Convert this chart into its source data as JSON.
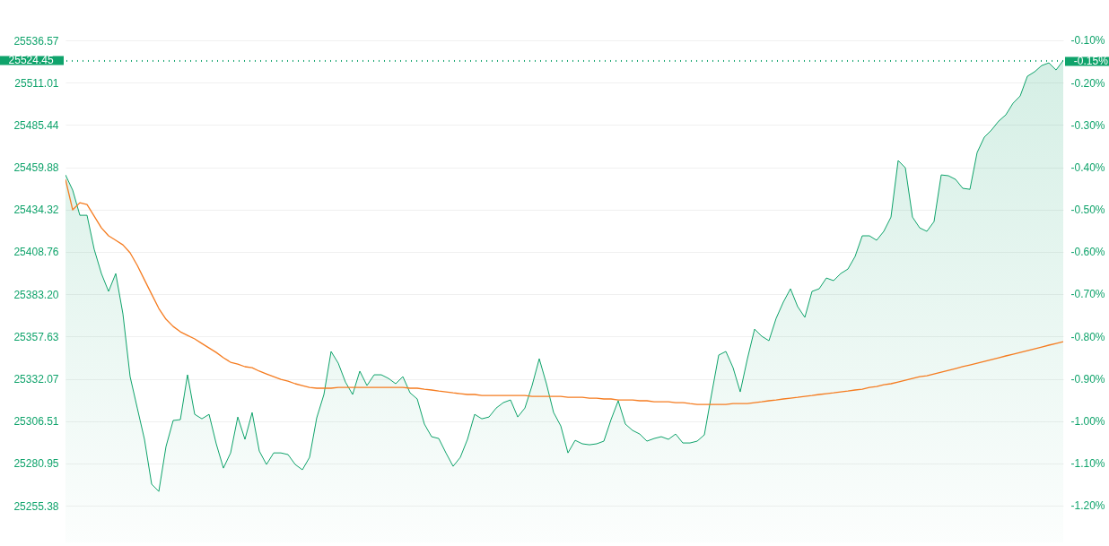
{
  "chart_data": {
    "type": "area",
    "categories": [
      null,
      null,
      null,
      null,
      null,
      null,
      null,
      null,
      null,
      null,
      null,
      null,
      null,
      null,
      null,
      null,
      null,
      null,
      null,
      null,
      null,
      null,
      null,
      null,
      null,
      null,
      null,
      null,
      null,
      null,
      null,
      null,
      null,
      null,
      null,
      null,
      null,
      null,
      null,
      null,
      null,
      null,
      null,
      null,
      null,
      null,
      null,
      null,
      null,
      null,
      null,
      null,
      null,
      null,
      null,
      null,
      null,
      null,
      null,
      null,
      null,
      null,
      null,
      null,
      null,
      null,
      null,
      null,
      null,
      null,
      null,
      null,
      null,
      null,
      null,
      null,
      null,
      null,
      null,
      null,
      null,
      null,
      null,
      null,
      null,
      null,
      null,
      null,
      null,
      null,
      null,
      null,
      null,
      null,
      null,
      null,
      null,
      null,
      null,
      null,
      null,
      null,
      null,
      null,
      null,
      null,
      null,
      null,
      null,
      null,
      null,
      null,
      null,
      null,
      null,
      null,
      null,
      null,
      null,
      null,
      null,
      null,
      null,
      null,
      null,
      null,
      null,
      null,
      null,
      null,
      null,
      null,
      null,
      null,
      null,
      null,
      null,
      null,
      null,
      null
    ],
    "series": [
      {
        "type": "area",
        "color": "#0fa36b",
        "values": [
          25455.3,
          25446.1,
          25430.9,
          25430.9,
          25410.3,
          25395.7,
          25384.9,
          25395.7,
          25371.3,
          25333.4,
          25314.4,
          25295.5,
          25268.4,
          25264.0,
          25291.1,
          25306.9,
          25307.4,
          25334.5,
          25310.6,
          25307.9,
          25310.6,
          25292.8,
          25278.1,
          25287.3,
          25309.0,
          25295.5,
          25311.7,
          25288.4,
          25280.3,
          25287.3,
          25287.3,
          25286.3,
          25280.3,
          25277.1,
          25284.6,
          25308.5,
          25322.6,
          25348.6,
          25341.5,
          25330.1,
          25322.6,
          25336.7,
          25328.0,
          25334.5,
          25334.5,
          25332.3,
          25329.1,
          25333.4,
          25323.6,
          25319.9,
          25304.7,
          25297.1,
          25296.0,
          25287.3,
          25279.2,
          25284.6,
          25295.5,
          25310.6,
          25307.9,
          25309.0,
          25314.4,
          25317.7,
          25319.3,
          25309.0,
          25314.4,
          25328.0,
          25344.2,
          25329.1,
          25311.7,
          25303.6,
          25287.3,
          25294.9,
          25292.8,
          25292.2,
          25292.8,
          25294.4,
          25307.4,
          25318.8,
          25304.7,
          25300.9,
          25298.7,
          25294.4,
          25296.0,
          25297.1,
          25295.5,
          25298.7,
          25293.3,
          25293.3,
          25294.4,
          25298.2,
          25322.6,
          25346.4,
          25348.6,
          25338.8,
          25324.2,
          25344.2,
          25362.1,
          25357.8,
          25355.1,
          25368.6,
          25378.4,
          25386.5,
          25375.7,
          25369.2,
          25384.9,
          25386.5,
          25393.0,
          25391.4,
          25395.7,
          25398.4,
          25406.0,
          25418.5,
          25418.5,
          25415.8,
          25421.2,
          25429.8,
          25464.0,
          25459.6,
          25429.8,
          25423.3,
          25421.2,
          25427.1,
          25455.3,
          25454.8,
          25452.6,
          25447.2,
          25446.6,
          25468.8,
          25478.1,
          25482.4,
          25487.8,
          25491.6,
          25498.6,
          25503.0,
          25514.9,
          25517.6,
          25521.4,
          25523.0,
          25518.7,
          25524.45
        ]
      },
      {
        "type": "line",
        "color": "#f57c20",
        "values": [
          25452.6,
          25434.2,
          25438.5,
          25437.4,
          25430.4,
          25423.3,
          25418.5,
          25415.8,
          25413.0,
          25408.2,
          25400.6,
          25391.9,
          25383.2,
          25374.6,
          25368.1,
          25363.7,
          25360.5,
          25358.3,
          25356.2,
          25353.4,
          25350.7,
          25348.0,
          25344.8,
          25342.1,
          25341.0,
          25339.4,
          25338.8,
          25336.7,
          25335.0,
          25333.4,
          25331.8,
          25330.7,
          25329.1,
          25328.0,
          25326.9,
          25326.4,
          25326.4,
          25326.4,
          25326.9,
          25326.9,
          25326.9,
          25326.9,
          25326.9,
          25326.9,
          25326.9,
          25326.9,
          25326.9,
          25326.9,
          25326.4,
          25326.4,
          25325.8,
          25325.3,
          25324.7,
          25324.2,
          25323.6,
          25323.1,
          25322.6,
          25322.6,
          25322.0,
          25322.0,
          25322.0,
          25322.0,
          25322.0,
          25322.0,
          25322.0,
          25321.5,
          25321.5,
          25321.5,
          25321.5,
          25321.5,
          25320.9,
          25320.9,
          25320.9,
          25320.4,
          25320.4,
          25319.9,
          25319.9,
          25319.3,
          25319.3,
          25319.3,
          25318.8,
          25318.8,
          25318.2,
          25318.2,
          25318.2,
          25317.7,
          25317.7,
          25317.1,
          25316.6,
          25316.6,
          25316.6,
          25316.6,
          25316.6,
          25317.1,
          25317.1,
          25317.1,
          25317.7,
          25318.2,
          25318.8,
          25319.3,
          25319.9,
          25320.4,
          25320.9,
          25321.5,
          25322.0,
          25322.6,
          25323.1,
          25323.6,
          25324.2,
          25324.7,
          25325.3,
          25325.8,
          25326.9,
          25327.4,
          25328.5,
          25329.1,
          25330.1,
          25331.2,
          25332.3,
          25333.4,
          25333.9,
          25335.0,
          25336.1,
          25337.2,
          25338.3,
          25339.4,
          25340.4,
          25341.5,
          25342.6,
          25343.7,
          25344.8,
          25345.9,
          25346.9,
          25348.0,
          25349.1,
          25350.2,
          25351.3,
          25352.4,
          25353.4,
          25354.5
        ]
      }
    ],
    "ylim": [
      25233.2,
      25561.0
    ],
    "yticks": [
      25255.38,
      25280.95,
      25306.51,
      25332.07,
      25357.63,
      {
        "value": 25383.2,
        "label": "25383.20"
      },
      25408.76,
      25434.32,
      25459.88,
      25485.44,
      25511.01,
      25536.57
    ],
    "y2lim": [
      -1.287,
      -0.005
    ],
    "y2ticks": [
      {
        "value": -1.2,
        "label": "-1.20%"
      },
      {
        "value": -1.1,
        "label": "-1.10%"
      },
      {
        "value": -1.0,
        "label": "-1.00%"
      },
      {
        "value": -0.9,
        "label": "-0.90%"
      },
      {
        "value": -0.8,
        "label": "-0.80%"
      },
      {
        "value": -0.7,
        "label": "-0.70%"
      },
      {
        "value": -0.6,
        "label": "-0.60%"
      },
      {
        "value": -0.5,
        "label": "-0.50%"
      },
      {
        "value": -0.4,
        "label": "-0.40%"
      },
      {
        "value": -0.3,
        "label": "-0.30%"
      },
      {
        "value": -0.2,
        "label": "-0.20%"
      },
      {
        "value": -0.1,
        "label": "-0.10%"
      }
    ],
    "ref_lines": [
      {
        "axis": "y",
        "value": 25524.45,
        "label": "25524.45",
        "color": "#0fa36b",
        "line_style": "dotted"
      },
      {
        "axis": "y2",
        "value": -0.15,
        "label": "-0.15%",
        "color": "#0fa36b",
        "line_style": "dotted"
      }
    ],
    "grid": "y"
  }
}
